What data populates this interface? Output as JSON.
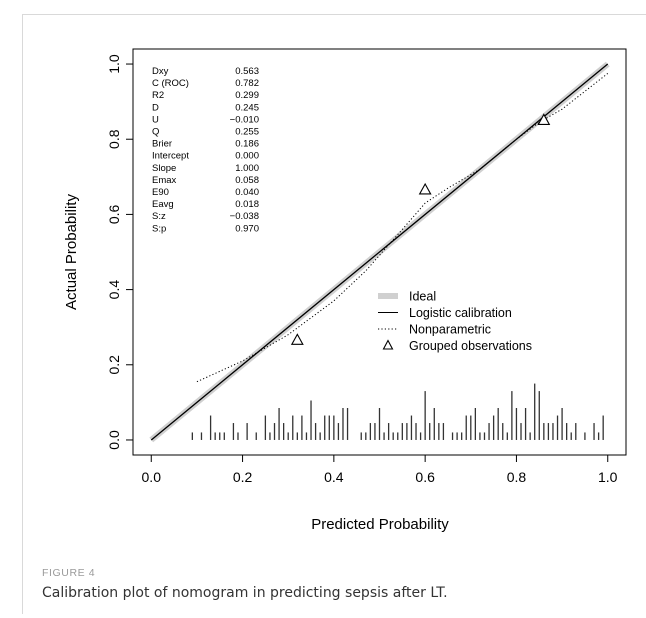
{
  "figure": {
    "label": "FIGURE 4",
    "caption": "Calibration plot of nomogram in predicting sepsis after LT."
  },
  "chart_data": {
    "type": "line",
    "xlabel": "Predicted Probability",
    "ylabel": "Actual Probability",
    "xlim": [
      -0.04,
      1.04
    ],
    "ylim": [
      -0.04,
      1.04
    ],
    "xticks": [
      "0.0",
      "0.2",
      "0.4",
      "0.6",
      "0.8",
      "1.0"
    ],
    "yticks": [
      "0.0",
      "0.2",
      "0.4",
      "0.6",
      "0.8",
      "1.0"
    ],
    "grid": false,
    "legend_position": "bottom-right",
    "legend": [
      {
        "label": "Ideal",
        "style": "thick-gray"
      },
      {
        "label": "Logistic calibration",
        "style": "solid-thin"
      },
      {
        "label": "Nonparametric",
        "style": "dotted"
      },
      {
        "label": "Grouped observations",
        "style": "triangle"
      }
    ],
    "stats": [
      {
        "name": "Dxy",
        "value": "0.563"
      },
      {
        "name": "C (ROC)",
        "value": "0.782"
      },
      {
        "name": "R2",
        "value": "0.299"
      },
      {
        "name": "D",
        "value": "0.245"
      },
      {
        "name": "U",
        "value": "−0.010"
      },
      {
        "name": "Q",
        "value": "0.255"
      },
      {
        "name": "Brier",
        "value": "0.186"
      },
      {
        "name": "Intercept",
        "value": "0.000"
      },
      {
        "name": "Slope",
        "value": "1.000"
      },
      {
        "name": "Emax",
        "value": "0.058"
      },
      {
        "name": "E90",
        "value": "0.040"
      },
      {
        "name": "Eavg",
        "value": "0.018"
      },
      {
        "name": "S:z",
        "value": "−0.038"
      },
      {
        "name": "S:p",
        "value": "0.970"
      }
    ],
    "series": [
      {
        "style": "ideal",
        "x": [
          0,
          1
        ],
        "y": [
          0,
          1
        ]
      },
      {
        "style": "logistic",
        "x": [
          0,
          1
        ],
        "y": [
          0,
          1
        ]
      },
      {
        "style": "nonparametric",
        "x": [
          0.1,
          0.2,
          0.3,
          0.4,
          0.47,
          0.55,
          0.6,
          0.65,
          0.72,
          0.8,
          0.85,
          0.9,
          1.0
        ],
        "y": [
          0.155,
          0.21,
          0.28,
          0.37,
          0.45,
          0.56,
          0.63,
          0.67,
          0.72,
          0.8,
          0.845,
          0.88,
          0.975
        ]
      },
      {
        "style": "grouped",
        "x": [
          0.32,
          0.6,
          0.86
        ],
        "y": [
          0.265,
          0.665,
          0.85
        ]
      }
    ],
    "rug": {
      "x": [
        0.09,
        0.11,
        0.13,
        0.14,
        0.15,
        0.16,
        0.18,
        0.19,
        0.21,
        0.23,
        0.25,
        0.26,
        0.27,
        0.28,
        0.29,
        0.3,
        0.31,
        0.32,
        0.33,
        0.34,
        0.35,
        0.36,
        0.37,
        0.38,
        0.39,
        0.4,
        0.41,
        0.42,
        0.43,
        0.46,
        0.47,
        0.48,
        0.49,
        0.5,
        0.51,
        0.52,
        0.53,
        0.54,
        0.55,
        0.56,
        0.57,
        0.58,
        0.59,
        0.6,
        0.61,
        0.62,
        0.63,
        0.64,
        0.66,
        0.67,
        0.68,
        0.69,
        0.7,
        0.71,
        0.72,
        0.73,
        0.74,
        0.75,
        0.76,
        0.77,
        0.78,
        0.79,
        0.8,
        0.81,
        0.82,
        0.83,
        0.84,
        0.85,
        0.86,
        0.87,
        0.88,
        0.89,
        0.9,
        0.91,
        0.92,
        0.93,
        0.95,
        0.97,
        0.98,
        0.99
      ],
      "h": [
        0.02,
        0.02,
        0.065,
        0.02,
        0.02,
        0.02,
        0.045,
        0.02,
        0.045,
        0.02,
        0.065,
        0.02,
        0.045,
        0.085,
        0.045,
        0.02,
        0.065,
        0.02,
        0.065,
        0.02,
        0.105,
        0.045,
        0.02,
        0.065,
        0.065,
        0.065,
        0.045,
        0.085,
        0.085,
        0.02,
        0.02,
        0.045,
        0.045,
        0.085,
        0.02,
        0.045,
        0.02,
        0.02,
        0.045,
        0.045,
        0.065,
        0.045,
        0.02,
        0.13,
        0.045,
        0.085,
        0.045,
        0.045,
        0.02,
        0.02,
        0.02,
        0.065,
        0.065,
        0.085,
        0.02,
        0.02,
        0.045,
        0.065,
        0.085,
        0.045,
        0.02,
        0.13,
        0.085,
        0.045,
        0.085,
        0.02,
        0.15,
        0.13,
        0.045,
        0.045,
        0.045,
        0.065,
        0.085,
        0.045,
        0.02,
        0.045,
        0.02,
        0.045,
        0.02,
        0.065
      ]
    }
  }
}
